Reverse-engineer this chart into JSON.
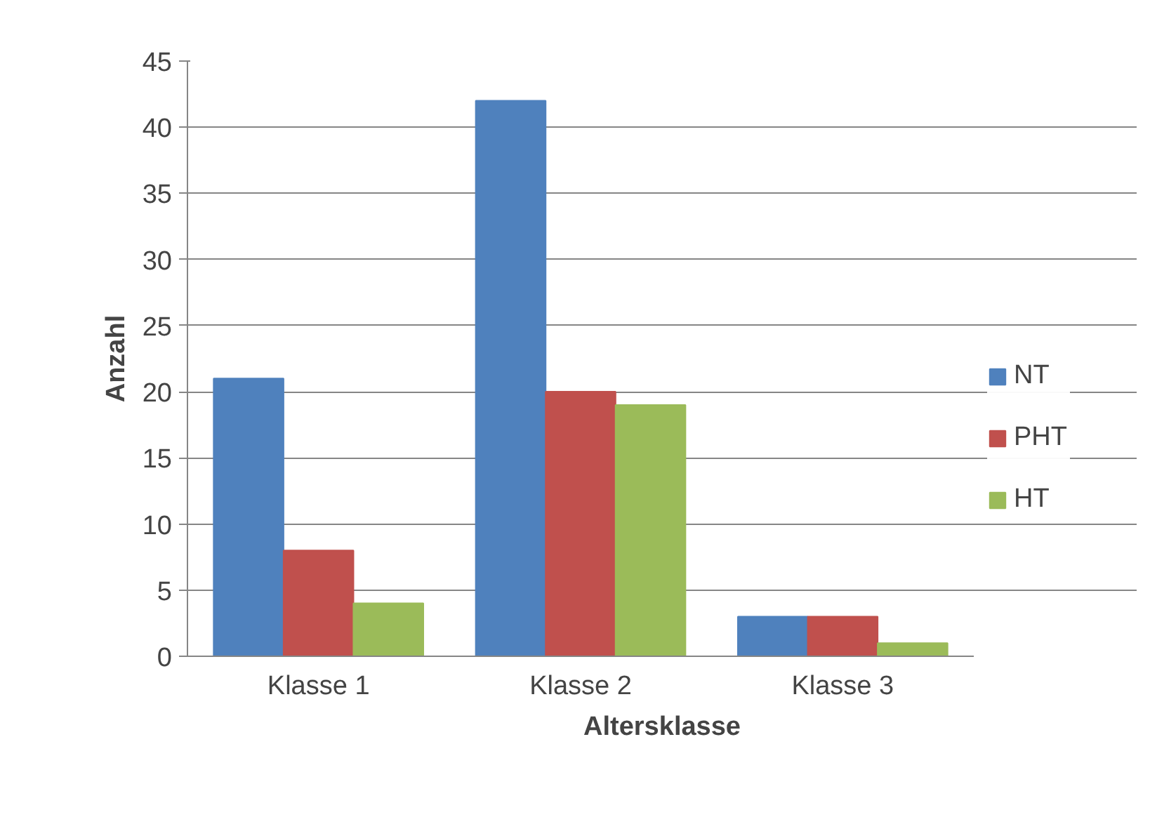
{
  "chart_data": {
    "type": "bar",
    "xlabel": "Altersklasse",
    "ylabel": "Anzahl",
    "categories": [
      "Klasse 1",
      "Klasse 2",
      "Klasse 3"
    ],
    "series": [
      {
        "name": "NT",
        "color": "#4f81bd",
        "values": [
          21,
          42,
          3
        ]
      },
      {
        "name": "PHT",
        "color": "#c0504d",
        "values": [
          8,
          20,
          3
        ]
      },
      {
        "name": "HT",
        "color": "#9bbb59",
        "values": [
          4,
          19,
          1
        ]
      }
    ],
    "ylim": [
      0,
      45
    ],
    "yticks": [
      0,
      5,
      10,
      15,
      20,
      25,
      30,
      35,
      40,
      45
    ],
    "grid": "y",
    "legend": "right"
  }
}
